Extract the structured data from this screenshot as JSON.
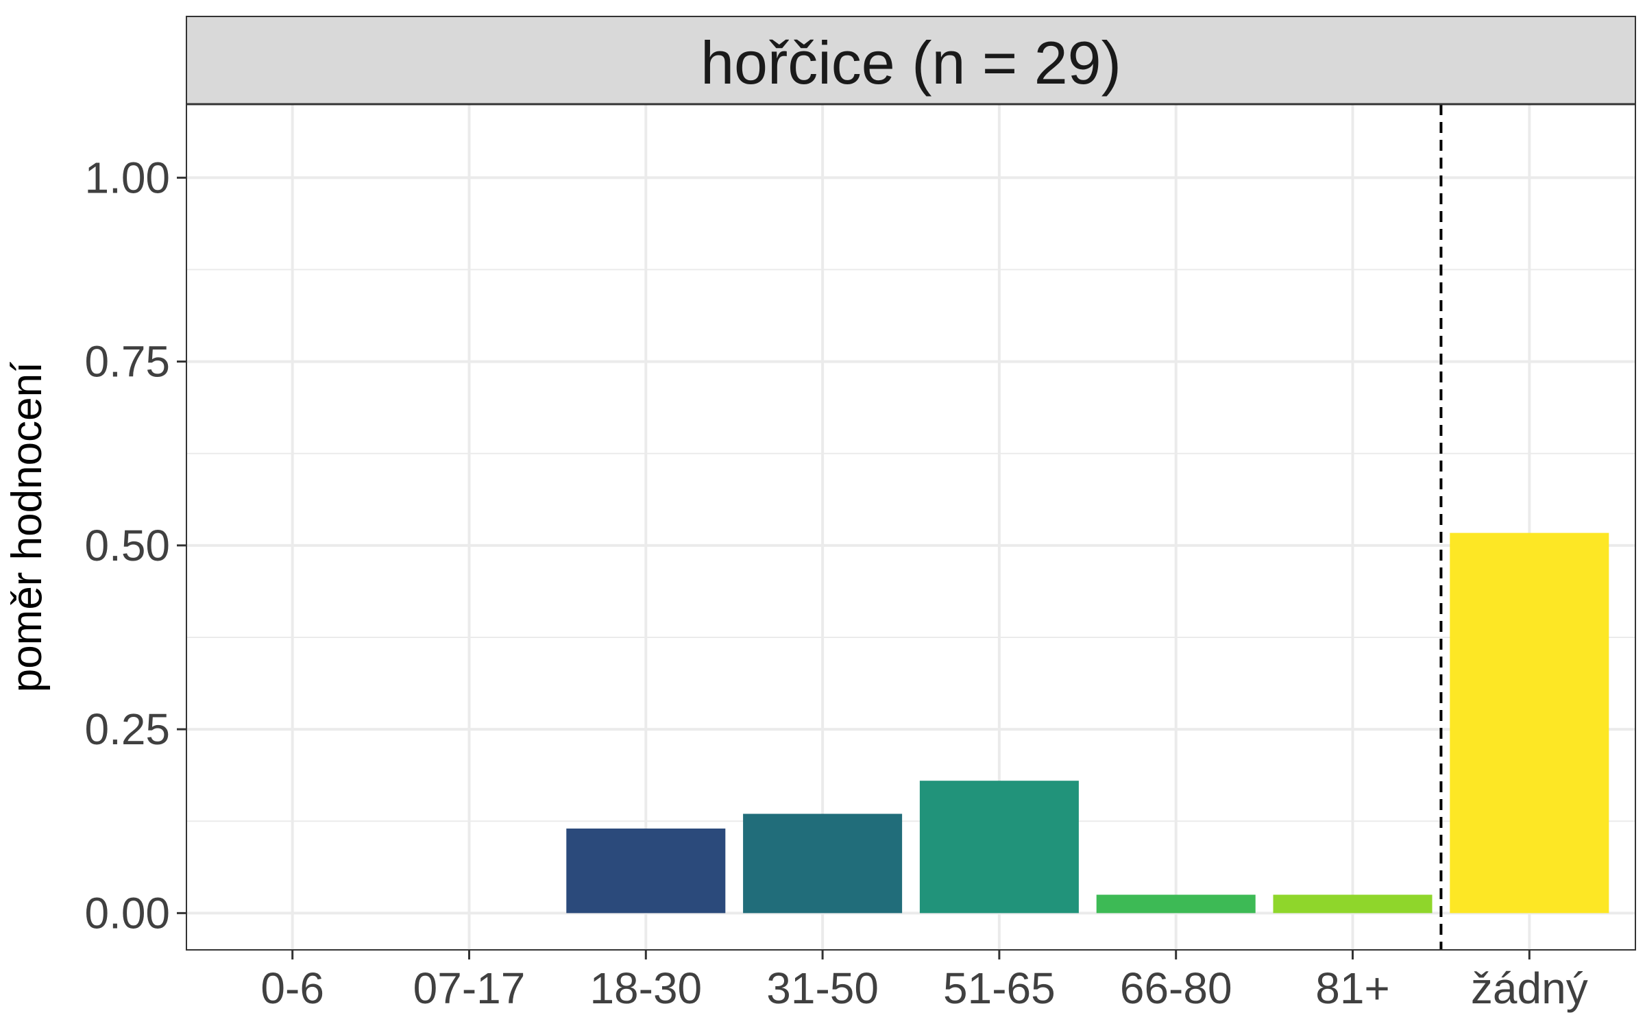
{
  "chart_data": {
    "type": "bar",
    "panel_title": "hořčice (n = 29)",
    "ylabel": "poměr hodnocení",
    "xlabel": "",
    "ylim": [
      -0.05,
      1.1
    ],
    "yticks": [
      0,
      0.25,
      0.5,
      0.75,
      1.0
    ],
    "ytick_labels": [
      "0.00",
      "0.25",
      "0.50",
      "0.75",
      "1.00"
    ],
    "categories": [
      "0-6",
      "07-17",
      "18-30",
      "31-50",
      "51-65",
      "66-80",
      "81+",
      "žádný"
    ],
    "values": [
      0,
      0,
      0.115,
      0.135,
      0.18,
      0.025,
      0.025,
      0.517
    ],
    "colors": [
      "#440154",
      "#46327E",
      "#2B4A7B",
      "#216D7A",
      "#21937A",
      "#3DBA55",
      "#8FD62B",
      "#FDE725"
    ],
    "divider_between": [
      6,
      7
    ],
    "grid": true,
    "legend": "none"
  }
}
